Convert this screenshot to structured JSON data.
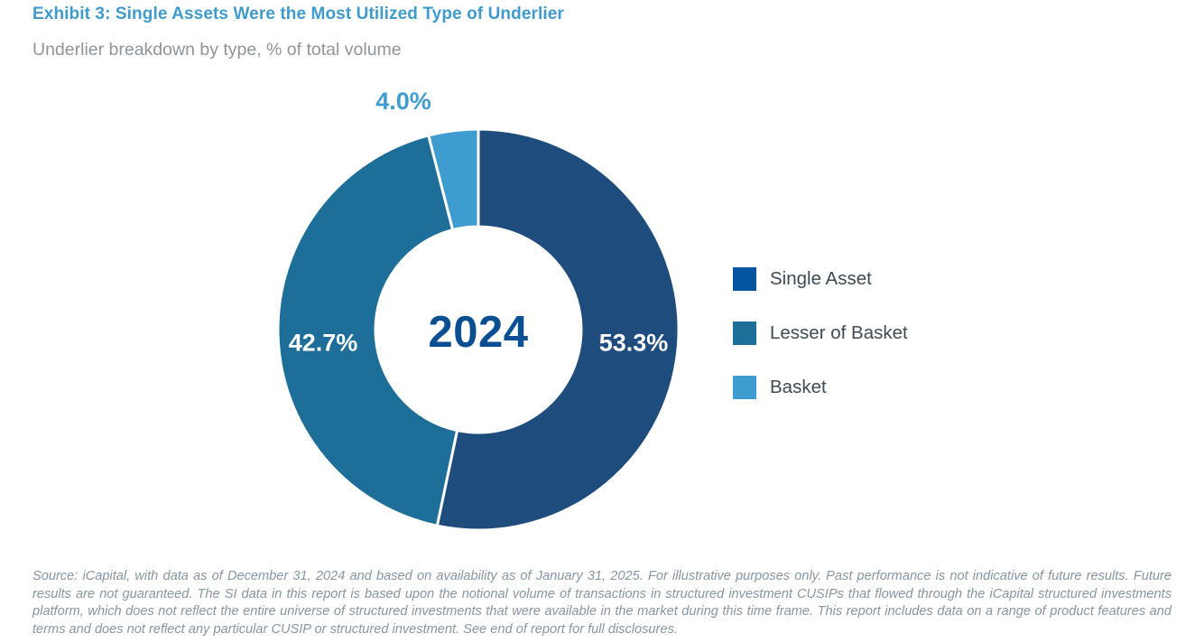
{
  "header": {
    "title": "Exhibit 3: Single Assets Were the Most Utilized Type of Underlier",
    "subtitle": "Underlier breakdown by type, % of total volume"
  },
  "chart_data": {
    "type": "pie",
    "variant": "donut",
    "title": "Exhibit 3: Single Assets Were the Most Utilized Type of Underlier",
    "subtitle": "Underlier breakdown by type, % of total volume",
    "center_label": "2024",
    "categories": [
      "Single Asset",
      "Lesser of Basket",
      "Basket"
    ],
    "values": [
      53.3,
      42.7,
      4.0
    ],
    "labels": [
      "53.3%",
      "42.7%",
      "4.0%"
    ],
    "slice_colors": [
      "#1E4C7D",
      "#1D6E99",
      "#3F9CCE"
    ],
    "legend_colors": [
      "#0054A0",
      "#1D6E99",
      "#3F9CCE"
    ],
    "slice_label_colors": [
      "#ffffff",
      "#ffffff",
      "#3F9CCE"
    ],
    "start_angle_deg": 0,
    "direction": "clockwise",
    "legend_position": "right",
    "separator_color": "#ffffff"
  },
  "legend": {
    "items": [
      {
        "label": "Single Asset"
      },
      {
        "label": "Lesser of Basket"
      },
      {
        "label": "Basket"
      }
    ]
  },
  "footer": {
    "source_text": "Source: iCapital, with data as of December 31, 2024 and based on availability as of January 31, 2025. For illustrative purposes only. Past performance is not indicative of future results. Future results are not guaranteed. The SI data in this report is based upon the notional volume of transactions in structured investment CUSIPs that flowed through the iCapital structured investments platform, which does not reflect the entire universe of structured investments that were available in the market during this time frame. This report includes data on a range of product features and terms and does not reflect any particular CUSIP or structured investment. See end of report for full disclosures."
  }
}
